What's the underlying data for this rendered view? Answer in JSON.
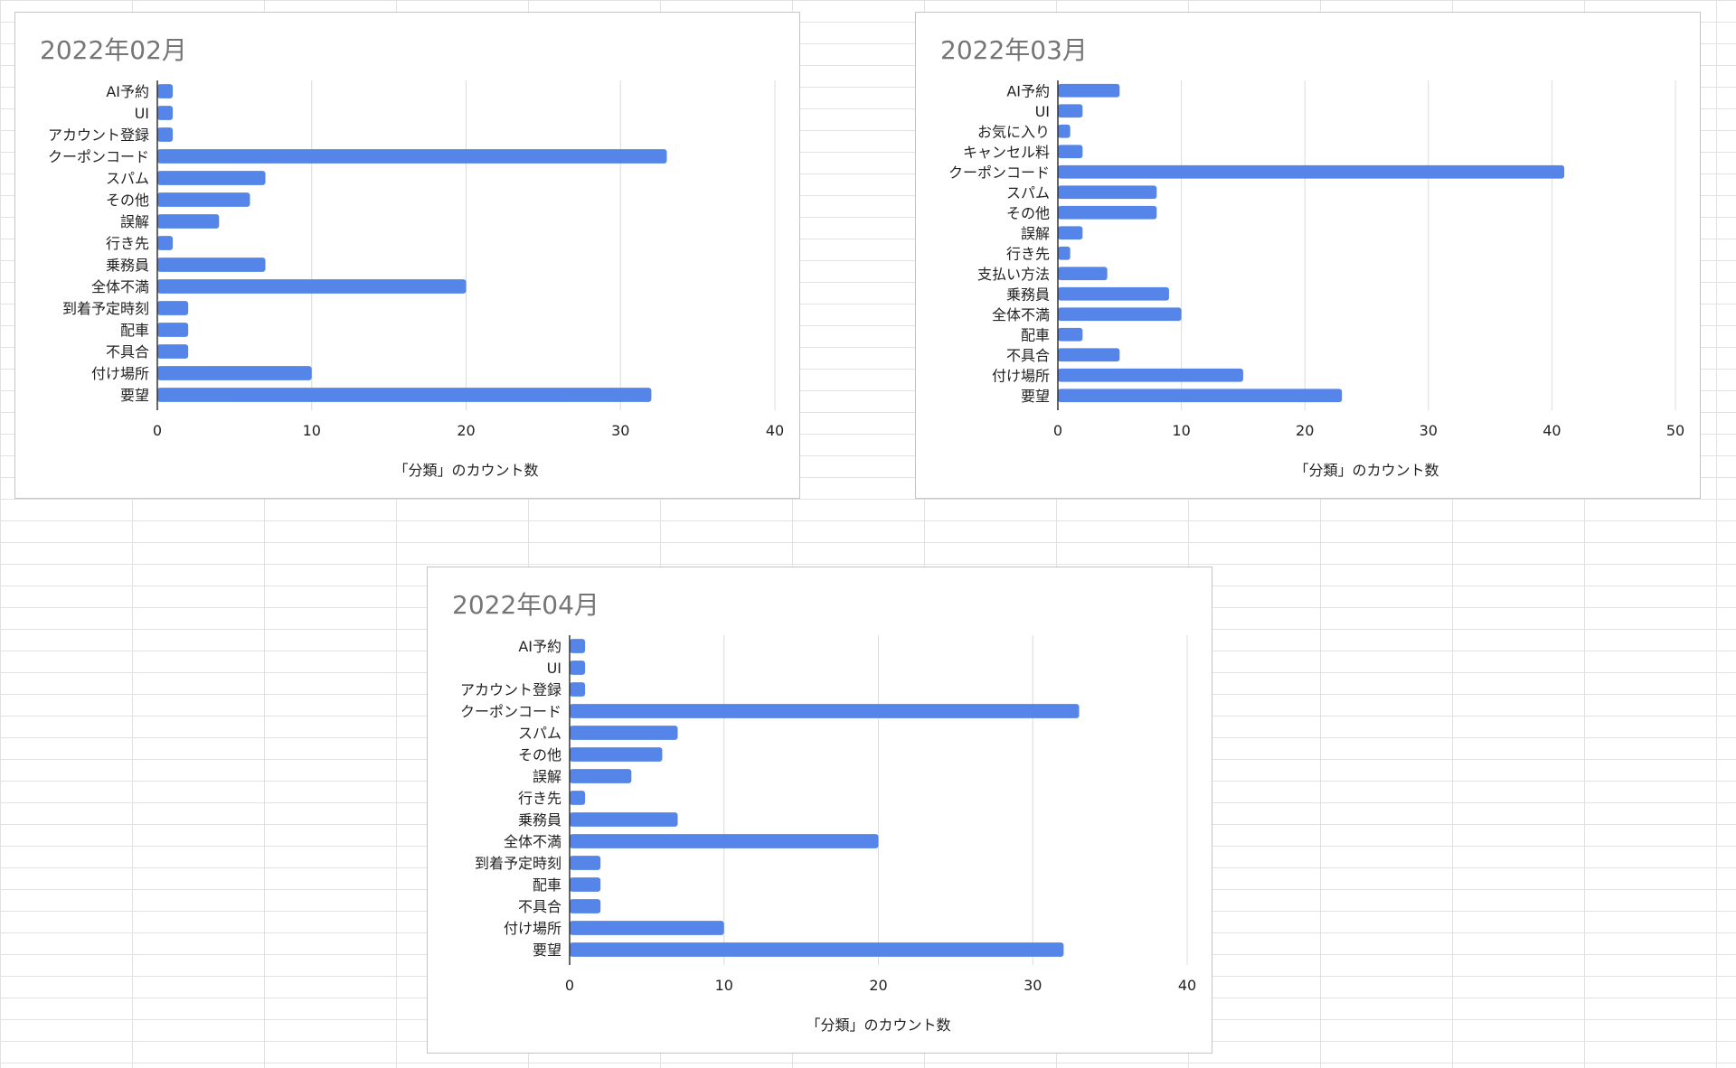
{
  "chart_data": [
    {
      "type": "bar",
      "orientation": "horizontal",
      "title": "2022年02月",
      "categories": [
        "AI予約",
        "UI",
        "アカウント登録",
        "クーポンコード",
        "スパム",
        "その他",
        "誤解",
        "行き先",
        "乗務員",
        "全体不満",
        "到着予定時刻",
        "配車",
        "不具合",
        "付け場所",
        "要望"
      ],
      "values": [
        1,
        1,
        1,
        33,
        7,
        6,
        4,
        1,
        7,
        20,
        2,
        2,
        2,
        10,
        32
      ],
      "xlabel": "「分類」のカウント数",
      "ylabel": "",
      "xlim": [
        0,
        40
      ],
      "xticks": [
        0,
        10,
        20,
        30,
        40
      ],
      "grid": "vertical",
      "legend": "none",
      "bar_color": "#5585e8"
    },
    {
      "type": "bar",
      "orientation": "horizontal",
      "title": "2022年03月",
      "categories": [
        "AI予約",
        "UI",
        "お気に入り",
        "キャンセル料",
        "クーポンコード",
        "スパム",
        "その他",
        "誤解",
        "行き先",
        "支払い方法",
        "乗務員",
        "全体不満",
        "配車",
        "不具合",
        "付け場所",
        "要望"
      ],
      "values": [
        5,
        2,
        1,
        2,
        41,
        8,
        8,
        2,
        1,
        4,
        9,
        10,
        2,
        5,
        15,
        23
      ],
      "xlabel": "「分類」のカウント数",
      "ylabel": "",
      "xlim": [
        0,
        50
      ],
      "xticks": [
        0,
        10,
        20,
        30,
        40,
        50
      ],
      "grid": "vertical",
      "legend": "none",
      "bar_color": "#5585e8"
    },
    {
      "type": "bar",
      "orientation": "horizontal",
      "title": "2022年04月",
      "categories": [
        "AI予約",
        "UI",
        "アカウント登録",
        "クーポンコード",
        "スパム",
        "その他",
        "誤解",
        "行き先",
        "乗務員",
        "全体不満",
        "到着予定時刻",
        "配車",
        "不具合",
        "付け場所",
        "要望"
      ],
      "values": [
        1,
        1,
        1,
        33,
        7,
        6,
        4,
        1,
        7,
        20,
        2,
        2,
        2,
        10,
        32
      ],
      "xlabel": "「分類」のカウント数",
      "ylabel": "",
      "xlim": [
        0,
        40
      ],
      "xticks": [
        0,
        10,
        20,
        30,
        40
      ],
      "grid": "vertical",
      "legend": "none",
      "bar_color": "#5585e8"
    }
  ]
}
